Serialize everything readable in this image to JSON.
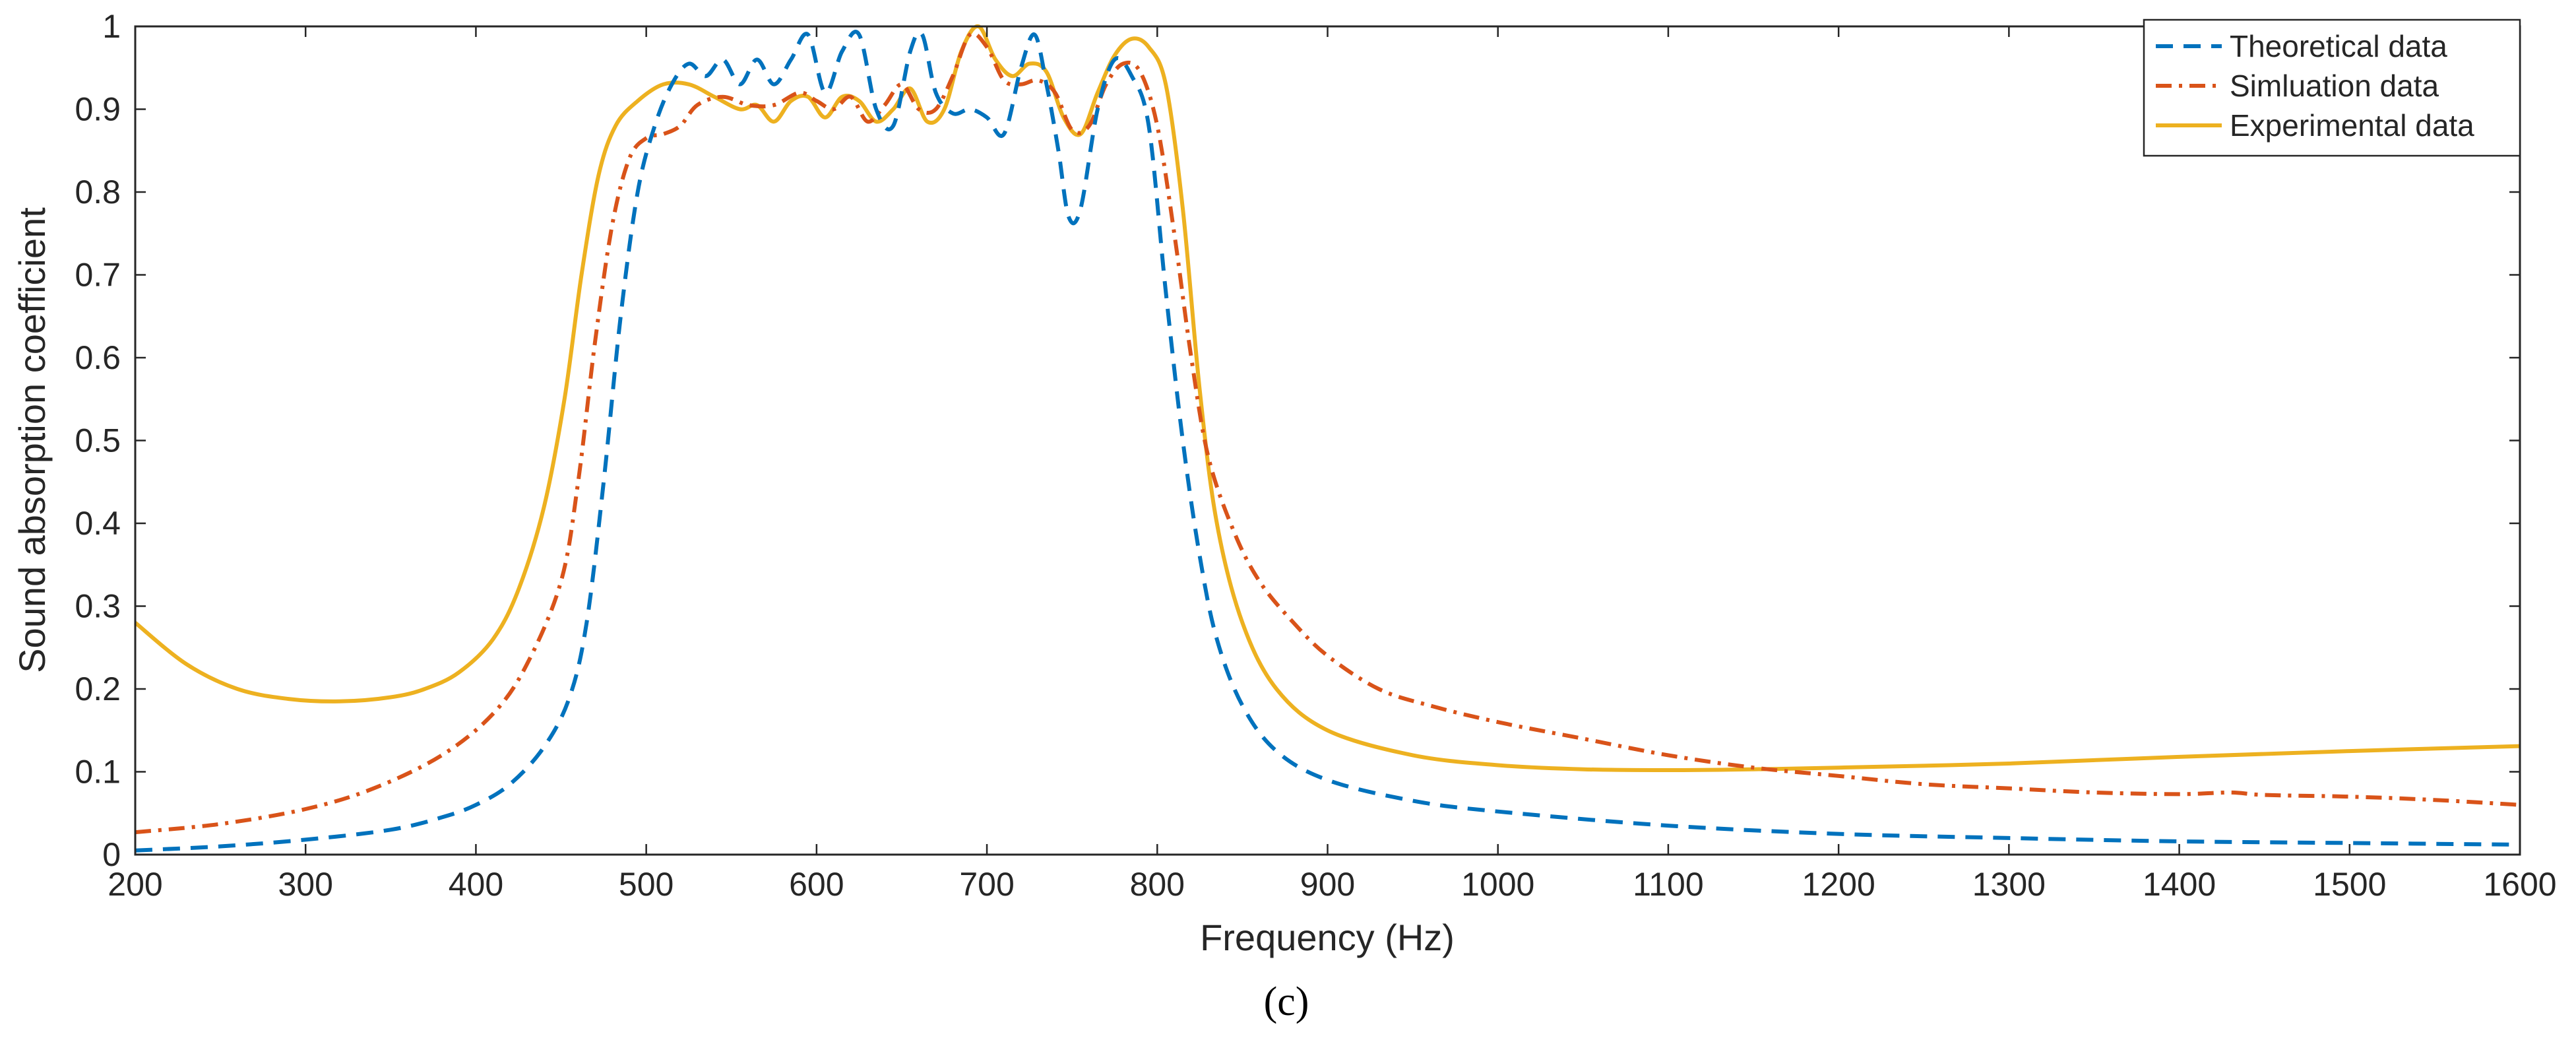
{
  "chart_data": {
    "type": "line",
    "title": "",
    "panel_label": "(c)",
    "xlabel": "Frequency (Hz)",
    "ylabel": "Sound absorption coefficient",
    "xlim": [
      200,
      1600
    ],
    "ylim": [
      0,
      1
    ],
    "xticks": [
      200,
      300,
      400,
      500,
      600,
      700,
      800,
      900,
      1000,
      1100,
      1200,
      1300,
      1400,
      1500,
      1600
    ],
    "xtick_labels": [
      "200",
      "300",
      "400",
      "500",
      "600",
      "700",
      "800",
      "900",
      "1000",
      "1100",
      "1200",
      "1300",
      "1400",
      "1500",
      "1600"
    ],
    "yticks": [
      0,
      0.1,
      0.2,
      0.3,
      0.4,
      0.5,
      0.6,
      0.7,
      0.8,
      0.9,
      1
    ],
    "ytick_labels": [
      "0",
      "0.1",
      "0.2",
      "0.3",
      "0.4",
      "0.5",
      "0.6",
      "0.7",
      "0.8",
      "0.9",
      "1"
    ],
    "grid": false,
    "legend_position": "top-right",
    "series": [
      {
        "name": "Theoretical data",
        "color": "#0072BD",
        "style": "dashed",
        "points": [
          [
            200,
            0.005
          ],
          [
            250,
            0.01
          ],
          [
            300,
            0.018
          ],
          [
            350,
            0.03
          ],
          [
            380,
            0.045
          ],
          [
            400,
            0.06
          ],
          [
            420,
            0.085
          ],
          [
            440,
            0.13
          ],
          [
            455,
            0.19
          ],
          [
            465,
            0.28
          ],
          [
            475,
            0.45
          ],
          [
            485,
            0.65
          ],
          [
            495,
            0.8
          ],
          [
            505,
            0.88
          ],
          [
            515,
            0.93
          ],
          [
            525,
            0.955
          ],
          [
            535,
            0.94
          ],
          [
            545,
            0.96
          ],
          [
            555,
            0.93
          ],
          [
            565,
            0.96
          ],
          [
            575,
            0.93
          ],
          [
            585,
            0.96
          ],
          [
            595,
            0.99
          ],
          [
            605,
            0.92
          ],
          [
            615,
            0.97
          ],
          [
            625,
            0.99
          ],
          [
            635,
            0.9
          ],
          [
            645,
            0.88
          ],
          [
            655,
            0.97
          ],
          [
            662,
            0.99
          ],
          [
            670,
            0.92
          ],
          [
            680,
            0.895
          ],
          [
            690,
            0.9
          ],
          [
            700,
            0.89
          ],
          [
            710,
            0.87
          ],
          [
            720,
            0.95
          ],
          [
            728,
            0.99
          ],
          [
            735,
            0.93
          ],
          [
            742,
            0.85
          ],
          [
            748,
            0.77
          ],
          [
            755,
            0.78
          ],
          [
            765,
            0.9
          ],
          [
            775,
            0.96
          ],
          [
            785,
            0.94
          ],
          [
            795,
            0.88
          ],
          [
            805,
            0.68
          ],
          [
            815,
            0.5
          ],
          [
            825,
            0.36
          ],
          [
            835,
            0.26
          ],
          [
            850,
            0.18
          ],
          [
            870,
            0.125
          ],
          [
            900,
            0.09
          ],
          [
            950,
            0.065
          ],
          [
            1000,
            0.052
          ],
          [
            1100,
            0.035
          ],
          [
            1200,
            0.025
          ],
          [
            1300,
            0.02
          ],
          [
            1400,
            0.016
          ],
          [
            1500,
            0.014
          ],
          [
            1600,
            0.012
          ]
        ]
      },
      {
        "name": "Simluation data",
        "color": "#D95319",
        "style": "dashdot",
        "points": [
          [
            200,
            0.027
          ],
          [
            250,
            0.037
          ],
          [
            300,
            0.055
          ],
          [
            340,
            0.08
          ],
          [
            380,
            0.12
          ],
          [
            410,
            0.17
          ],
          [
            430,
            0.23
          ],
          [
            450,
            0.33
          ],
          [
            460,
            0.45
          ],
          [
            470,
            0.62
          ],
          [
            480,
            0.76
          ],
          [
            490,
            0.84
          ],
          [
            500,
            0.865
          ],
          [
            510,
            0.87
          ],
          [
            520,
            0.88
          ],
          [
            530,
            0.905
          ],
          [
            545,
            0.915
          ],
          [
            560,
            0.905
          ],
          [
            575,
            0.905
          ],
          [
            590,
            0.92
          ],
          [
            600,
            0.91
          ],
          [
            610,
            0.9
          ],
          [
            620,
            0.915
          ],
          [
            630,
            0.885
          ],
          [
            640,
            0.905
          ],
          [
            650,
            0.93
          ],
          [
            660,
            0.9
          ],
          [
            670,
            0.9
          ],
          [
            680,
            0.94
          ],
          [
            690,
            0.99
          ],
          [
            700,
            0.975
          ],
          [
            710,
            0.935
          ],
          [
            720,
            0.93
          ],
          [
            730,
            0.935
          ],
          [
            740,
            0.92
          ],
          [
            750,
            0.875
          ],
          [
            760,
            0.88
          ],
          [
            770,
            0.93
          ],
          [
            780,
            0.955
          ],
          [
            790,
            0.945
          ],
          [
            800,
            0.88
          ],
          [
            810,
            0.75
          ],
          [
            820,
            0.6
          ],
          [
            830,
            0.48
          ],
          [
            845,
            0.39
          ],
          [
            860,
            0.33
          ],
          [
            880,
            0.28
          ],
          [
            900,
            0.24
          ],
          [
            930,
            0.2
          ],
          [
            960,
            0.18
          ],
          [
            1000,
            0.16
          ],
          [
            1050,
            0.14
          ],
          [
            1100,
            0.12
          ],
          [
            1150,
            0.105
          ],
          [
            1200,
            0.095
          ],
          [
            1250,
            0.085
          ],
          [
            1300,
            0.08
          ],
          [
            1350,
            0.075
          ],
          [
            1400,
            0.073
          ],
          [
            1430,
            0.075
          ],
          [
            1450,
            0.072
          ],
          [
            1500,
            0.07
          ],
          [
            1550,
            0.066
          ],
          [
            1600,
            0.06
          ]
        ]
      },
      {
        "name": "Experimental data",
        "color": "#EDB120",
        "style": "solid",
        "points": [
          [
            200,
            0.28
          ],
          [
            230,
            0.23
          ],
          [
            260,
            0.2
          ],
          [
            290,
            0.188
          ],
          [
            320,
            0.185
          ],
          [
            350,
            0.19
          ],
          [
            370,
            0.2
          ],
          [
            390,
            0.22
          ],
          [
            410,
            0.26
          ],
          [
            425,
            0.32
          ],
          [
            440,
            0.42
          ],
          [
            452,
            0.55
          ],
          [
            462,
            0.7
          ],
          [
            472,
            0.82
          ],
          [
            482,
            0.88
          ],
          [
            495,
            0.91
          ],
          [
            510,
            0.93
          ],
          [
            525,
            0.93
          ],
          [
            540,
            0.915
          ],
          [
            555,
            0.9
          ],
          [
            565,
            0.905
          ],
          [
            575,
            0.885
          ],
          [
            585,
            0.91
          ],
          [
            595,
            0.915
          ],
          [
            605,
            0.89
          ],
          [
            615,
            0.915
          ],
          [
            625,
            0.91
          ],
          [
            635,
            0.885
          ],
          [
            645,
            0.9
          ],
          [
            655,
            0.925
          ],
          [
            665,
            0.885
          ],
          [
            675,
            0.9
          ],
          [
            685,
            0.97
          ],
          [
            695,
            1.0
          ],
          [
            705,
            0.96
          ],
          [
            715,
            0.94
          ],
          [
            725,
            0.955
          ],
          [
            735,
            0.945
          ],
          [
            745,
            0.89
          ],
          [
            755,
            0.87
          ],
          [
            765,
            0.92
          ],
          [
            775,
            0.965
          ],
          [
            785,
            0.985
          ],
          [
            795,
            0.975
          ],
          [
            805,
            0.93
          ],
          [
            815,
            0.78
          ],
          [
            825,
            0.56
          ],
          [
            835,
            0.4
          ],
          [
            850,
            0.28
          ],
          [
            870,
            0.2
          ],
          [
            900,
            0.15
          ],
          [
            950,
            0.12
          ],
          [
            1000,
            0.108
          ],
          [
            1050,
            0.103
          ],
          [
            1100,
            0.102
          ],
          [
            1150,
            0.103
          ],
          [
            1200,
            0.105
          ],
          [
            1300,
            0.11
          ],
          [
            1400,
            0.118
          ],
          [
            1500,
            0.125
          ],
          [
            1600,
            0.131
          ]
        ]
      }
    ]
  }
}
